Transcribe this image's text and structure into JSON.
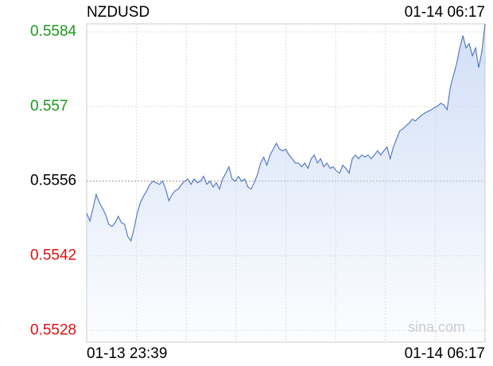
{
  "chart_data": {
    "type": "line",
    "title": "NZDUSD",
    "time": "01-14 06:17",
    "watermark": "sina.com",
    "categories": [
      "01-13 23:39",
      null,
      null,
      null,
      null,
      null,
      null,
      null,
      null,
      null,
      null,
      null,
      null,
      null,
      null,
      null,
      null,
      null,
      null,
      null,
      null,
      null,
      null,
      null,
      null,
      null,
      null,
      null,
      null,
      null,
      null,
      null,
      null,
      null,
      null,
      null,
      null,
      null,
      null,
      null,
      null,
      null,
      null,
      null,
      null,
      null,
      null,
      null,
      null,
      null,
      null,
      null,
      null,
      null,
      null,
      null,
      null,
      null,
      null,
      null,
      null,
      null,
      null,
      null,
      null,
      null,
      null,
      null,
      null,
      null,
      null,
      null,
      null,
      null,
      null,
      null,
      null,
      null,
      null,
      null,
      null,
      null,
      null,
      null,
      null,
      null,
      null,
      null,
      null,
      null,
      null,
      null,
      null,
      null,
      null,
      null,
      null,
      null,
      null,
      null,
      null,
      null,
      null,
      null,
      null,
      null,
      null,
      null,
      null,
      null,
      null,
      null,
      null,
      null,
      null,
      null,
      null,
      null,
      null,
      null,
      null,
      null,
      null,
      null,
      null,
      null,
      "01-14 06:17"
    ],
    "values": [
      0.555,
      0.55485,
      0.55509,
      0.55535,
      0.5552,
      0.55509,
      0.55497,
      0.55479,
      0.55475,
      0.55482,
      0.55494,
      0.55482,
      0.55479,
      0.55456,
      0.55448,
      0.55471,
      0.555,
      0.5552,
      0.55532,
      0.55542,
      0.55554,
      0.5556,
      0.55557,
      0.55554,
      0.5556,
      0.55545,
      0.55523,
      0.55535,
      0.55542,
      0.55545,
      0.55554,
      0.5556,
      0.55564,
      0.55554,
      0.55564,
      0.55557,
      0.5556,
      0.55569,
      0.55554,
      0.5556,
      0.55549,
      0.55557,
      0.55545,
      0.55564,
      0.55575,
      0.55587,
      0.55564,
      0.5556,
      0.55569,
      0.5556,
      0.55564,
      0.55549,
      0.55545,
      0.55557,
      0.55572,
      0.55594,
      0.55605,
      0.5559,
      0.55609,
      0.5562,
      0.55631,
      0.5562,
      0.55617,
      0.5562,
      0.55609,
      0.55602,
      0.55594,
      0.55594,
      0.55587,
      0.55594,
      0.55584,
      0.55602,
      0.55609,
      0.55594,
      0.55602,
      0.55587,
      0.55594,
      0.55584,
      0.55587,
      0.55579,
      0.55575,
      0.5559,
      0.55584,
      0.55575,
      0.55602,
      0.55609,
      0.55602,
      0.55609,
      0.55605,
      0.55609,
      0.55602,
      0.55609,
      0.55617,
      0.55609,
      0.55617,
      0.55624,
      0.55602,
      0.55624,
      0.55639,
      0.55654,
      0.55658,
      0.55664,
      0.55669,
      0.55676,
      0.55673,
      0.55679,
      0.55684,
      0.55688,
      0.55691,
      0.55694,
      0.55698,
      0.55701,
      0.55706,
      0.55703,
      0.55694,
      0.55736,
      0.55758,
      0.5578,
      0.5581,
      0.55833,
      0.5581,
      0.55818,
      0.55795,
      0.5581,
      0.55773,
      0.55803,
      0.55855
    ],
    "color": "#4a72c0",
    "area_color": "#c9d9f5",
    "ylim": [
      0.55258,
      0.55855
    ],
    "yticks": [
      0.5528,
      0.5542,
      0.5556,
      0.557,
      0.5584
    ],
    "reference": 0.5556,
    "up_color": "#1a9a1a",
    "down_color": "#e01010",
    "flat_color": "#000000",
    "grid": true
  }
}
